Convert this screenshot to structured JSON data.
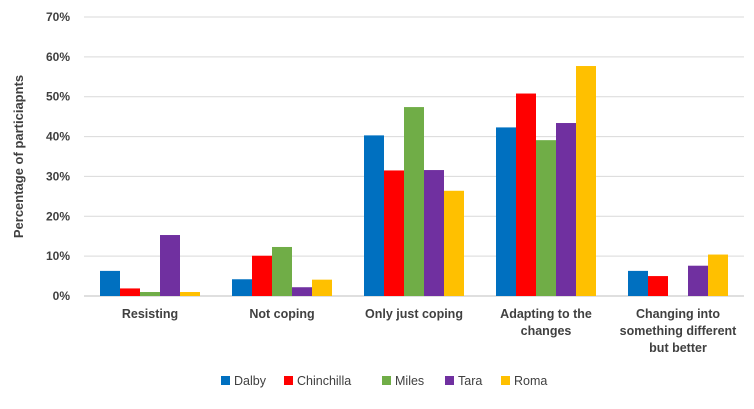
{
  "chart_data": {
    "type": "bar",
    "title": "",
    "xlabel": "",
    "ylabel": "Percentage of particiapnts",
    "ylim": [
      0,
      70
    ],
    "yticks": [
      0,
      10,
      20,
      30,
      40,
      50,
      60,
      70
    ],
    "ytick_suffix": "%",
    "grid": true,
    "legend_position": "bottom",
    "categories": [
      [
        "Resisting"
      ],
      [
        "Not coping"
      ],
      [
        "Only just coping"
      ],
      [
        "Adapting to the",
        "changes"
      ],
      [
        "Changing into",
        "something different",
        "but better"
      ]
    ],
    "series": [
      {
        "name": "Dalby",
        "color": "#0070c0",
        "values": [
          6.3,
          4.2,
          40.3,
          42.3,
          6.3
        ]
      },
      {
        "name": "Chinchilla",
        "color": "#ff0000",
        "values": [
          1.9,
          10.1,
          31.5,
          50.8,
          5.0
        ]
      },
      {
        "name": "Miles",
        "color": "#70ad47",
        "values": [
          1.0,
          12.3,
          47.4,
          39.1,
          0
        ]
      },
      {
        "name": "Tara",
        "color": "#7030a0",
        "values": [
          15.3,
          2.2,
          31.6,
          43.4,
          7.6
        ]
      },
      {
        "name": "Roma",
        "color": "#ffc000",
        "values": [
          1.0,
          4.1,
          26.4,
          57.7,
          10.4
        ]
      }
    ]
  }
}
